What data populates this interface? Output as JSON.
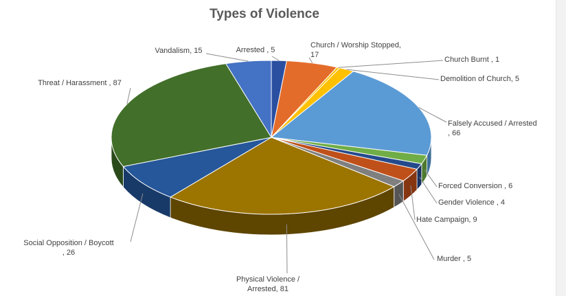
{
  "chart_data": {
    "type": "pie",
    "title": "Types of Violence",
    "start_category": "Arrested",
    "slices": [
      {
        "label_lines": [
          "Arrested , 5"
        ],
        "category": "Arrested",
        "value": 5,
        "color": "#2a4fa0",
        "side": "#1c3570"
      },
      {
        "label_lines": [
          "Church / Worship Stopped,",
          "17"
        ],
        "category": "Church / Worship Stopped",
        "value": 17,
        "color": "#e46c2a",
        "side": "#a84b18"
      },
      {
        "label_lines": [
          "Church Burnt , 1"
        ],
        "category": "Church Burnt",
        "value": 1,
        "color": "#ffc000",
        "side": "#b88900"
      },
      {
        "label_lines": [
          "Demolition of Church, 5"
        ],
        "category": "Demolition of Church",
        "value": 5,
        "color": "#ffc000",
        "side": "#b88900"
      },
      {
        "label_lines": [
          "Falsely Accused / Arrested",
          ", 66"
        ],
        "category": "Falsely Accused / Arrested",
        "value": 66,
        "color": "#5b9bd5",
        "side": "#3d6f9c"
      },
      {
        "label_lines": [
          "Forced Conversion , 6"
        ],
        "category": "Forced Conversion",
        "value": 6,
        "color": "#70ad47",
        "side": "#4d7a30"
      },
      {
        "label_lines": [
          "Gender Violence , 4"
        ],
        "category": "Gender Violence",
        "value": 4,
        "color": "#254a8c",
        "side": "#183060"
      },
      {
        "label_lines": [
          "Hate Campaign, 9"
        ],
        "category": "Hate Campaign",
        "value": 9,
        "color": "#c0501a",
        "side": "#853510"
      },
      {
        "label_lines": [
          "Murder , 5"
        ],
        "category": "Murder",
        "value": 5,
        "color": "#7f7f7f",
        "side": "#555555"
      },
      {
        "label_lines": [
          "Physical Violence /",
          "Arrested, 81"
        ],
        "category": "Physical Violence / Arrested",
        "value": 81,
        "color": "#9c7400",
        "side": "#5e4500"
      },
      {
        "label_lines": [
          "Social Opposition / Boycott",
          ", 26"
        ],
        "category": "Social Opposition / Boycott",
        "value": 26,
        "color": "#25579a",
        "side": "#183a68"
      },
      {
        "label_lines": [
          "Threat / Harassment , 87"
        ],
        "category": "Threat / Harassment",
        "value": 87,
        "color": "#426f2a",
        "side": "#2b4a1b"
      },
      {
        "label_lines": [
          "Vandalism, 15"
        ],
        "category": "Vandalism",
        "value": 15,
        "color": "#4472c4",
        "side": "#2e4f8a"
      }
    ],
    "legend": "none",
    "style": "3d-pie-with-callout-labels"
  }
}
